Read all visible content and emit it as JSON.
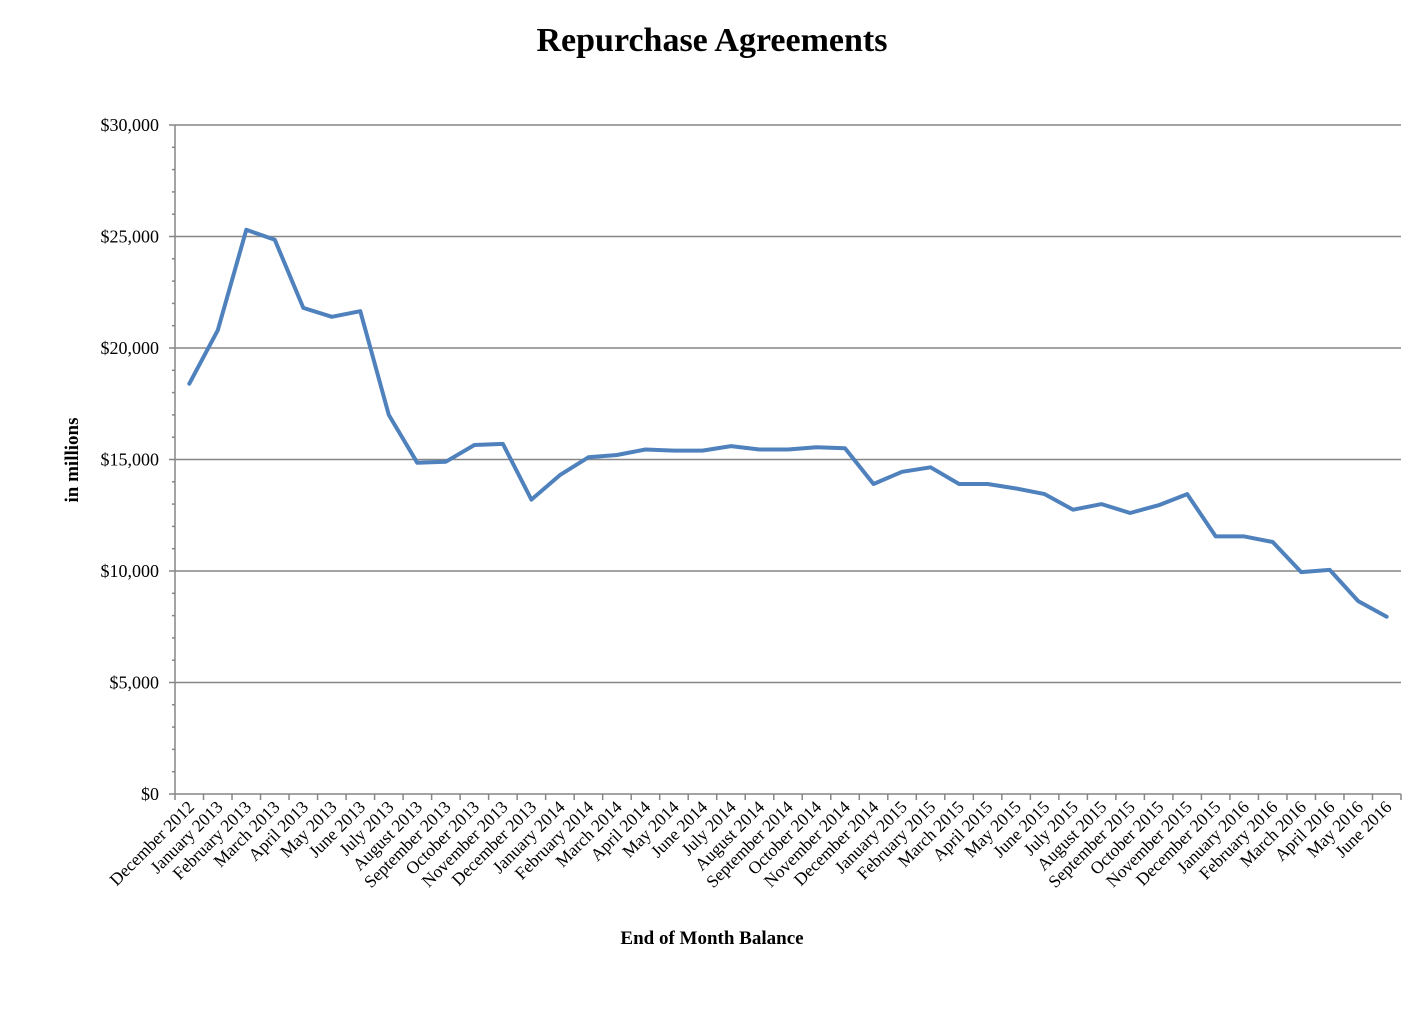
{
  "chart_data": {
    "type": "line",
    "title": "Repurchase Agreements",
    "xlabel": "End of Month Balance",
    "ylabel": "in millions",
    "ylim": [
      0,
      30000
    ],
    "yticks": [
      "$0",
      "$5,000",
      "$10,000",
      "$15,000",
      "$20,000",
      "$25,000",
      "$30,000"
    ],
    "grid": true,
    "legend": "none",
    "line_color": "#4F81BD",
    "grid_color": "#868686",
    "categories": [
      "December 2012",
      "January 2013",
      "February 2013",
      "March 2013",
      "April 2013",
      "May 2013",
      "June 2013",
      "July 2013",
      "August 2013",
      "September 2013",
      "October 2013",
      "November 2013",
      "December 2013",
      "January 2014",
      "February 2014",
      "March 2014",
      "April 2014",
      "May 2014",
      "June 2014",
      "July 2014",
      "August 2014",
      "September 2014",
      "October 2014",
      "November 2014",
      "December 2014",
      "January 2015",
      "February 2015",
      "March 2015",
      "April 2015",
      "May 2015",
      "June 2015",
      "July 2015",
      "August 2015",
      "September 2015",
      "October 2015",
      "November 2015",
      "December 2015",
      "January 2016",
      "February 2016",
      "March 2016",
      "April 2016",
      "May 2016",
      "June 2016"
    ],
    "series": [
      {
        "values": [
          18400,
          20800,
          25300,
          24850,
          21800,
          21400,
          21650,
          17000,
          14850,
          14900,
          15650,
          15700,
          13200,
          14300,
          15100,
          15200,
          15450,
          15400,
          15400,
          15600,
          15450,
          15450,
          15550,
          15500,
          13900,
          14450,
          14650,
          13900,
          13900,
          13700,
          13450,
          12750,
          13000,
          12600,
          12950,
          13450,
          11550,
          11550,
          11300,
          9950,
          10050,
          8650,
          7950
        ]
      }
    ]
  }
}
